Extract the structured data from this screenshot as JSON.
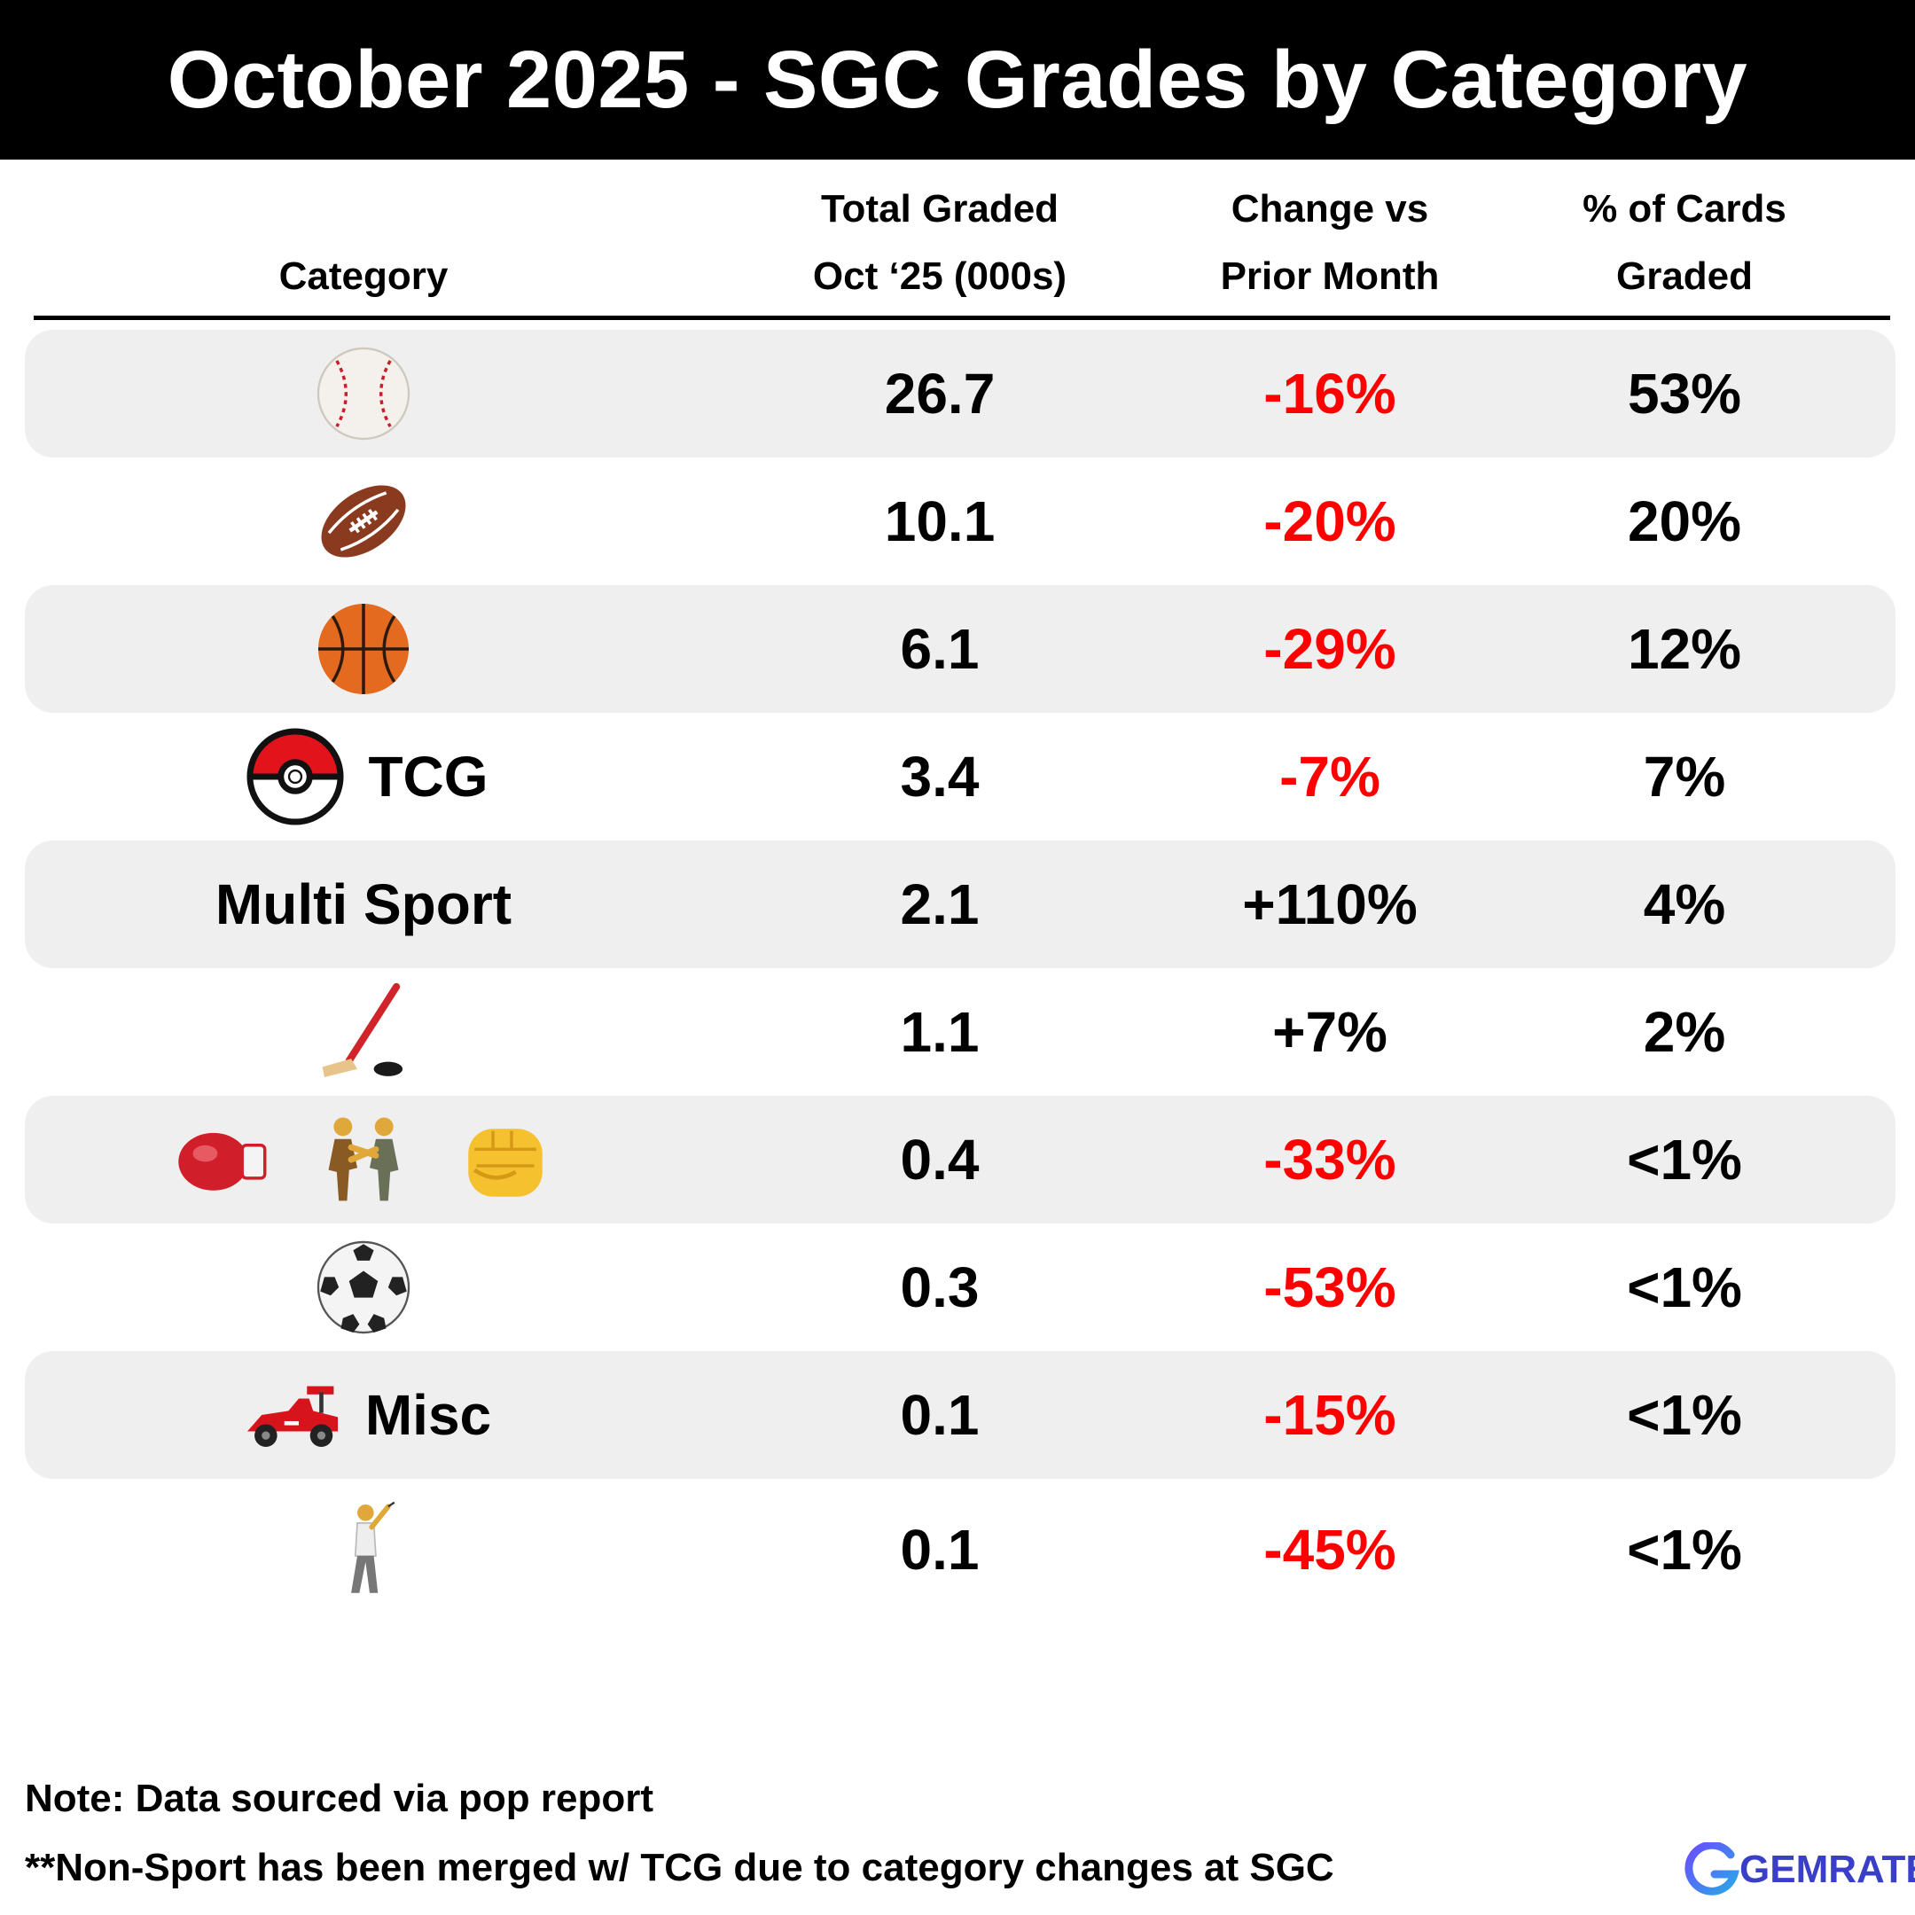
{
  "title": "October 2025 - SGC Grades by Category",
  "headers": {
    "category": "Category",
    "total_line1": "Total Graded",
    "total_line2": "Oct ‘25 (000s)",
    "change_line1": "Change vs",
    "change_line2": "Prior Month",
    "pct_line1": "% of Cards",
    "pct_line2": "Graded"
  },
  "colors": {
    "negative": "#ff0000",
    "positive": "#000000",
    "row_shade": "#efefef",
    "brand": "#3a3fc7"
  },
  "chart_data": {
    "type": "table",
    "title": "October 2025 - SGC Grades by Category",
    "columns": [
      "Category",
      "Total Graded Oct ‘25 (000s)",
      "Change vs Prior Month",
      "% of Cards Graded"
    ],
    "rows": [
      {
        "icons": [
          "baseball-icon"
        ],
        "label": "",
        "total": "26.7",
        "change": "-16%",
        "pct": "53%"
      },
      {
        "icons": [
          "american-football-icon"
        ],
        "label": "",
        "total": "10.1",
        "change": "-20%",
        "pct": "20%"
      },
      {
        "icons": [
          "basketball-icon"
        ],
        "label": "",
        "total": "6.1",
        "change": "-29%",
        "pct": "12%"
      },
      {
        "icons": [
          "pokeball-icon"
        ],
        "label": "TCG",
        "total": "3.4",
        "change": "-7%",
        "pct": "7%"
      },
      {
        "icons": [],
        "label": "Multi Sport",
        "total": "2.1",
        "change": "+110%",
        "pct": "4%"
      },
      {
        "icons": [
          "hockey-icon"
        ],
        "label": "",
        "total": "1.1",
        "change": "+7%",
        "pct": "2%"
      },
      {
        "icons": [
          "boxing-glove-icon",
          "wrestlers-icon",
          "fist-icon"
        ],
        "label": "",
        "total": "0.4",
        "change": "-33%",
        "pct": "<1%"
      },
      {
        "icons": [
          "soccer-ball-icon"
        ],
        "label": "",
        "total": "0.3",
        "change": "-53%",
        "pct": "<1%"
      },
      {
        "icons": [
          "race-car-icon"
        ],
        "label": "Misc",
        "total": "0.1",
        "change": "-15%",
        "pct": "<1%"
      },
      {
        "icons": [
          "golfer-icon"
        ],
        "label": "",
        "total": "0.1",
        "change": "-45%",
        "pct": "<1%"
      }
    ]
  },
  "notes": {
    "note1": "Note: Data sourced via pop report",
    "note2": "**Non-Sport has been merged w/ TCG due to category changes at SGC"
  },
  "logo": {
    "text": "GEMRATE",
    "icon": "gemrate-g-icon"
  }
}
